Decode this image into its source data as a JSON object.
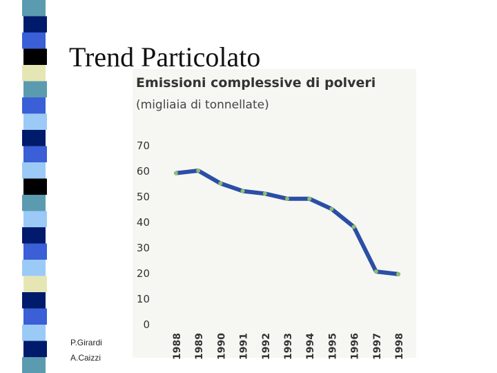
{
  "slide": {
    "title": "Trend Particolato",
    "authors": [
      "P.Girardi",
      "A.Caizzi"
    ]
  },
  "chart_data": {
    "type": "line",
    "title": "Emissioni complessive di polveri",
    "subtitle": "(migliaia di tonnellate)",
    "categories": [
      "1988",
      "1989",
      "1990",
      "1991",
      "1992",
      "1993",
      "1994",
      "1995",
      "1996",
      "1997",
      "1998"
    ],
    "values": [
      59,
      60,
      55,
      52,
      51,
      49,
      49,
      45,
      38,
      20.5,
      19.5
    ],
    "color": "#2b4ea6",
    "marker_color": "#8fbf6a",
    "ylim": [
      0,
      70
    ],
    "yticks": [
      0,
      10,
      20,
      30,
      40,
      50,
      60,
      70
    ],
    "grid": false
  }
}
